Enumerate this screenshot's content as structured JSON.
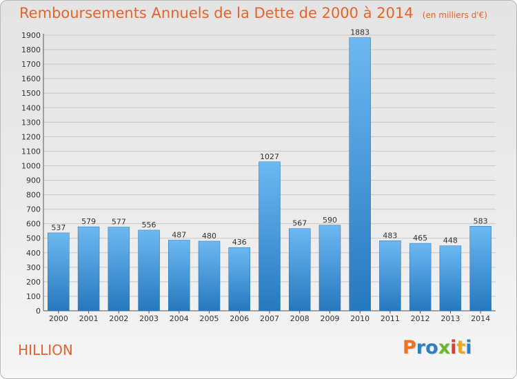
{
  "title": "Remboursements Annuels de la Dette de 2000 à 2014",
  "unit": "(en milliers d'€)",
  "commune": "HILLION",
  "logo": {
    "text": "Proxiti",
    "colors": [
      "#f0731c",
      "#2e7fc2",
      "#2e7fc2",
      "#6ab82e",
      "#e23a2e",
      "#f0a818",
      "#2e7fc2"
    ]
  },
  "colors": {
    "title": "#e8632a",
    "bar_light": "#6cb8f2",
    "bar_dark": "#2678be",
    "grid": "#c8c8c8"
  },
  "chart_data": {
    "type": "bar",
    "title": "Remboursements Annuels de la Dette de 2000 à 2014",
    "subtitle": "(en milliers d'€)",
    "categories": [
      "2000",
      "2001",
      "2002",
      "2003",
      "2004",
      "2005",
      "2006",
      "2007",
      "2008",
      "2009",
      "2010",
      "2011",
      "2012",
      "2013",
      "2014"
    ],
    "values": [
      537,
      579,
      577,
      556,
      487,
      480,
      436,
      1027,
      567,
      590,
      1883,
      483,
      465,
      448,
      583
    ],
    "ylim": [
      0,
      1900
    ],
    "yticks": [
      0,
      100,
      200,
      300,
      400,
      500,
      600,
      700,
      800,
      900,
      1000,
      1100,
      1200,
      1300,
      1400,
      1500,
      1600,
      1700,
      1800,
      1900
    ],
    "grid": true,
    "data_labels": true
  }
}
